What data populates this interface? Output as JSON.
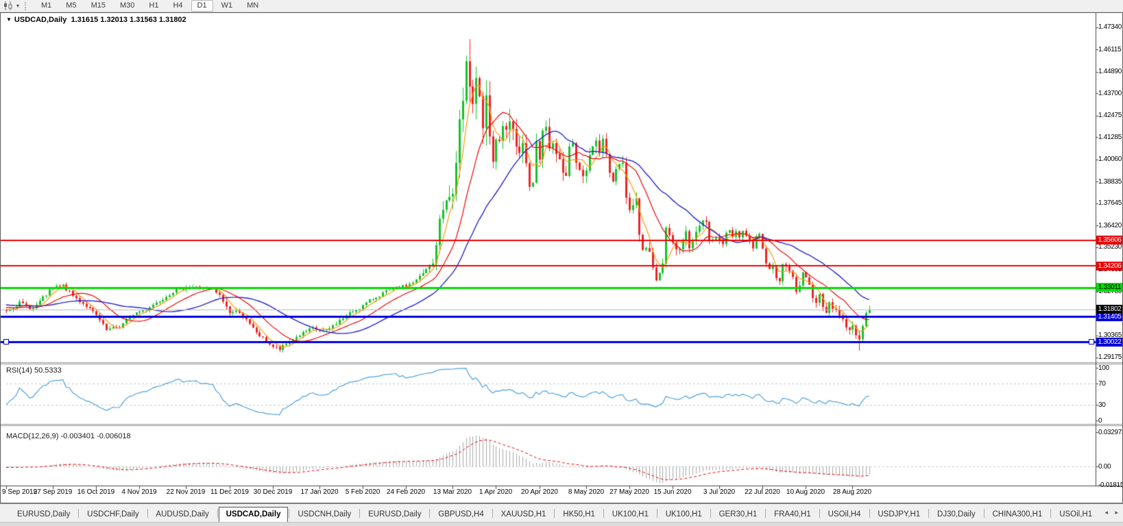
{
  "toolbar": {
    "chart_tool_icon": "candlestick-chart-icon",
    "caret": "▾",
    "timeframes": [
      "M1",
      "M5",
      "M15",
      "M30",
      "H1",
      "H4",
      "D1",
      "W1",
      "MN"
    ],
    "active_timeframe": "D1"
  },
  "chart_header": {
    "collapse_icon": "▼",
    "symbol": "USDCAD,Daily",
    "ohlc_string": "1.31615 1.32013 1.31563 1.31802"
  },
  "price_axis": {
    "ticks": [
      "1.47340",
      "1.46115",
      "1.44890",
      "1.43700",
      "1.42475",
      "1.41285",
      "1.40060",
      "1.38835",
      "1.37645",
      "1.36420",
      "1.35230",
      "1.34005",
      "1.32780",
      "1.30365",
      "1.29175"
    ]
  },
  "hlines": [
    {
      "price": 1.35606,
      "label": "1.35606",
      "color": "#ee0000",
      "text_color": "#ffffff",
      "width": 2,
      "selected": false
    },
    {
      "price": 1.34206,
      "label": "1.34206",
      "color": "#ee0000",
      "text_color": "#ffffff",
      "width": 2,
      "selected": false
    },
    {
      "price": 1.33011,
      "label": "1.33011",
      "color": "#00dd00",
      "text_color": "#000000",
      "width": 3,
      "selected": false
    },
    {
      "price": 1.31405,
      "label": "1.31405",
      "color": "#0000dd",
      "text_color": "#ffffff",
      "width": 3,
      "selected": false
    },
    {
      "price": 1.30022,
      "label": "1.30022",
      "color": "#0000dd",
      "text_color": "#ffffff",
      "width": 3,
      "selected": true
    }
  ],
  "current_price_line": {
    "price": 1.31802,
    "label": "1.31802",
    "line_color": "#b8b8b8",
    "badge_bg": "#000000",
    "badge_fg": "#ffffff"
  },
  "rsi_panel": {
    "label": "RSI(14) 50.5333",
    "axis_ticks": [
      "100",
      "70",
      "30",
      "0"
    ],
    "level_lines": [
      70,
      30
    ],
    "line_color": "#4a9fe0"
  },
  "macd_panel": {
    "label": "MACD(12,26,9) -0.003401 -0.006018",
    "axis_ticks": [
      "0.032972",
      "0.00",
      "-0.01815"
    ],
    "histogram_color": "#a8a8a8",
    "signal_color": "#ee0000"
  },
  "date_axis": {
    "labels": [
      {
        "label": "9 Sep 2019",
        "idx": 0
      },
      {
        "label": "27 Sep 2019",
        "idx": 14
      },
      {
        "label": "16 Oct 2019",
        "idx": 27
      },
      {
        "label": "4 Nov 2019",
        "idx": 40
      },
      {
        "label": "22 Nov 2019",
        "idx": 54
      },
      {
        "label": "11 Dec 2019",
        "idx": 67
      },
      {
        "label": "30 Dec 2019",
        "idx": 80
      },
      {
        "label": "17 Jan 2020",
        "idx": 94
      },
      {
        "label": "5 Feb 2020",
        "idx": 107
      },
      {
        "label": "24 Feb 2020",
        "idx": 120
      },
      {
        "label": "13 Mar 2020",
        "idx": 134
      },
      {
        "label": "1 Apr 2020",
        "idx": 147
      },
      {
        "label": "20 Apr 2020",
        "idx": 160
      },
      {
        "label": "8 May 2020",
        "idx": 174
      },
      {
        "label": "27 May 2020",
        "idx": 187
      },
      {
        "label": "15 Jun 2020",
        "idx": 200
      },
      {
        "label": "3 Jul 2020",
        "idx": 214
      },
      {
        "label": "22 Jul 2020",
        "idx": 227
      },
      {
        "label": "10 Aug 2020",
        "idx": 240
      },
      {
        "label": "28 Aug 2020",
        "idx": 254
      }
    ]
  },
  "tabs": {
    "items": [
      "EURUSD,Daily",
      "USDCHF,Daily",
      "AUDUSD,Daily",
      "USDCAD,Daily",
      "USDCNH,Daily",
      "EURUSD,Daily",
      "GBPUSD,H4",
      "XAUUSD,H1",
      "HK50,H1",
      "UK100,H1",
      "UK100,H1",
      "GER30,H1",
      "FRA40,H1",
      "USOil,H4",
      "USDJPY,H1",
      "DJ30,Daily",
      "CHINA300,H1",
      "USOil,H1"
    ],
    "active_index": 3,
    "scroll_arrows": "◂ ▸"
  },
  "chart_data": {
    "type": "candlestick",
    "symbol": "USDCAD",
    "timeframe": "Daily",
    "current_bar": {
      "open": 1.31615,
      "high": 1.32013,
      "low": 1.31563,
      "close": 1.31802
    },
    "y_range": [
      1.29175,
      1.4734
    ],
    "x_start_label": "9 Sep 2019",
    "x_end_label": "28 Aug 2020",
    "num_candles": 260,
    "up_color": "#12c22a",
    "down_color": "#ee2222",
    "horizontal_levels": [
      1.35606,
      1.34206,
      1.33011,
      1.31405,
      1.30022
    ],
    "moving_averages": [
      {
        "period": 5,
        "color": "#ff9800"
      },
      {
        "period": 14,
        "color": "#ee0000"
      },
      {
        "period": 30,
        "color": "#2222cc"
      }
    ],
    "indicators": {
      "rsi": {
        "period": 14,
        "value": 50.5333,
        "range": [
          0,
          100
        ],
        "levels": [
          70,
          30
        ]
      },
      "macd": {
        "fast": 12,
        "slow": 26,
        "signal": 9,
        "value": -0.003401,
        "signal_value": -0.006018,
        "axis_max": 0.032972,
        "axis_min": -0.01815
      }
    },
    "price_anchors": [
      [
        -90,
        1.328
      ],
      [
        -45,
        1.324
      ],
      [
        -10,
        1.32
      ],
      [
        0,
        1.3175
      ],
      [
        4,
        1.3215
      ],
      [
        8,
        1.3185
      ],
      [
        14,
        1.33
      ],
      [
        17,
        1.331
      ],
      [
        20,
        1.3255
      ],
      [
        24,
        1.32
      ],
      [
        27,
        1.3145
      ],
      [
        30,
        1.3065
      ],
      [
        34,
        1.3085
      ],
      [
        38,
        1.3155
      ],
      [
        42,
        1.3185
      ],
      [
        46,
        1.323
      ],
      [
        50,
        1.328
      ],
      [
        54,
        1.3305
      ],
      [
        58,
        1.33
      ],
      [
        62,
        1.329
      ],
      [
        64,
        1.3255
      ],
      [
        67,
        1.3165
      ],
      [
        70,
        1.317
      ],
      [
        73,
        1.3095
      ],
      [
        76,
        1.3035
      ],
      [
        80,
        1.2975
      ],
      [
        82,
        1.296
      ],
      [
        85,
        1.3005
      ],
      [
        88,
        1.304
      ],
      [
        92,
        1.3075
      ],
      [
        96,
        1.306
      ],
      [
        100,
        1.312
      ],
      [
        104,
        1.317
      ],
      [
        107,
        1.32
      ],
      [
        110,
        1.324
      ],
      [
        113,
        1.327
      ],
      [
        116,
        1.329
      ],
      [
        120,
        1.331
      ],
      [
        123,
        1.334
      ],
      [
        126,
        1.3395
      ],
      [
        128,
        1.343
      ],
      [
        130,
        1.366
      ],
      [
        131,
        1.373
      ],
      [
        132,
        1.381
      ],
      [
        133,
        1.378
      ],
      [
        134,
        1.382
      ],
      [
        135,
        1.398
      ],
      [
        136,
        1.422
      ],
      [
        137,
        1.428
      ],
      [
        138,
        1.449
      ],
      [
        139,
        1.445
      ],
      [
        140,
        1.436
      ],
      [
        141,
        1.448
      ],
      [
        142,
        1.435
      ],
      [
        143,
        1.419
      ],
      [
        144,
        1.431
      ],
      [
        145,
        1.409
      ],
      [
        146,
        1.399
      ],
      [
        147,
        1.407
      ],
      [
        148,
        1.413
      ],
      [
        149,
        1.419
      ],
      [
        150,
        1.413
      ],
      [
        151,
        1.42
      ],
      [
        152,
        1.415
      ],
      [
        153,
        1.409
      ],
      [
        154,
        1.401
      ],
      [
        155,
        1.406
      ],
      [
        156,
        1.396
      ],
      [
        157,
        1.389
      ],
      [
        158,
        1.39
      ],
      [
        159,
        1.409
      ],
      [
        160,
        1.403
      ],
      [
        161,
        1.419
      ],
      [
        162,
        1.416
      ],
      [
        163,
        1.408
      ],
      [
        164,
        1.409
      ],
      [
        165,
        1.405
      ],
      [
        166,
        1.399
      ],
      [
        167,
        1.392
      ],
      [
        168,
        1.394
      ],
      [
        169,
        1.408
      ],
      [
        170,
        1.407
      ],
      [
        171,
        1.401
      ],
      [
        172,
        1.397
      ],
      [
        173,
        1.392
      ],
      [
        174,
        1.393
      ],
      [
        175,
        1.402
      ],
      [
        176,
        1.409
      ],
      [
        177,
        1.411
      ],
      [
        178,
        1.406
      ],
      [
        179,
        1.412
      ],
      [
        180,
        1.404
      ],
      [
        181,
        1.393
      ],
      [
        182,
        1.39
      ],
      [
        183,
        1.394
      ],
      [
        184,
        1.399
      ],
      [
        185,
        1.398
      ],
      [
        186,
        1.378
      ],
      [
        187,
        1.375
      ],
      [
        188,
        1.377
      ],
      [
        189,
        1.378
      ],
      [
        190,
        1.357
      ],
      [
        191,
        1.352
      ],
      [
        192,
        1.35
      ],
      [
        193,
        1.349
      ],
      [
        194,
        1.342
      ],
      [
        195,
        1.336
      ],
      [
        196,
        1.34
      ],
      [
        197,
        1.341
      ],
      [
        198,
        1.362
      ],
      [
        199,
        1.36
      ],
      [
        200,
        1.355
      ],
      [
        201,
        1.353
      ],
      [
        202,
        1.351
      ],
      [
        203,
        1.356
      ],
      [
        204,
        1.36
      ],
      [
        205,
        1.353
      ],
      [
        206,
        1.355
      ],
      [
        207,
        1.362
      ],
      [
        208,
        1.365
      ],
      [
        209,
        1.368
      ],
      [
        210,
        1.365
      ],
      [
        211,
        1.357
      ],
      [
        212,
        1.358
      ],
      [
        213,
        1.356
      ],
      [
        214,
        1.355
      ],
      [
        215,
        1.354
      ],
      [
        216,
        1.36
      ],
      [
        217,
        1.361
      ],
      [
        218,
        1.359
      ],
      [
        219,
        1.361
      ],
      [
        220,
        1.359
      ],
      [
        221,
        1.361
      ],
      [
        222,
        1.358
      ],
      [
        223,
        1.355
      ],
      [
        224,
        1.353
      ],
      [
        225,
        1.358
      ],
      [
        226,
        1.36
      ],
      [
        227,
        1.353
      ],
      [
        228,
        1.342
      ],
      [
        229,
        1.341
      ],
      [
        230,
        1.343
      ],
      [
        231,
        1.336
      ],
      [
        232,
        1.334
      ],
      [
        233,
        1.342
      ],
      [
        234,
        1.341
      ],
      [
        235,
        1.338
      ],
      [
        236,
        1.335
      ],
      [
        237,
        1.327
      ],
      [
        238,
        1.33
      ],
      [
        239,
        1.338
      ],
      [
        240,
        1.335
      ],
      [
        241,
        1.331
      ],
      [
        242,
        1.325
      ],
      [
        243,
        1.322
      ],
      [
        244,
        1.326
      ],
      [
        245,
        1.32
      ],
      [
        246,
        1.317
      ],
      [
        247,
        1.322
      ],
      [
        248,
        1.318
      ],
      [
        249,
        1.317
      ],
      [
        250,
        1.315
      ],
      [
        251,
        1.312
      ],
      [
        252,
        1.309
      ],
      [
        253,
        1.306
      ],
      [
        254,
        1.309
      ],
      [
        255,
        1.304
      ],
      [
        256,
        1.302
      ],
      [
        257,
        1.308
      ],
      [
        258,
        1.3162
      ],
      [
        259,
        1.31802
      ]
    ],
    "volatility_anchors": [
      [
        -90,
        0.0022
      ],
      [
        120,
        0.0022
      ],
      [
        128,
        0.004
      ],
      [
        132,
        0.009
      ],
      [
        136,
        0.014
      ],
      [
        146,
        0.013
      ],
      [
        152,
        0.009
      ],
      [
        160,
        0.007
      ],
      [
        170,
        0.006
      ],
      [
        185,
        0.005
      ],
      [
        190,
        0.006
      ],
      [
        200,
        0.005
      ],
      [
        210,
        0.0035
      ],
      [
        227,
        0.0035
      ],
      [
        256,
        0.0038
      ],
      [
        259,
        0.002
      ]
    ],
    "spikes": [
      {
        "idx": 139,
        "high": 1.4668
      },
      {
        "idx": 256,
        "low": 1.2952
      }
    ]
  }
}
